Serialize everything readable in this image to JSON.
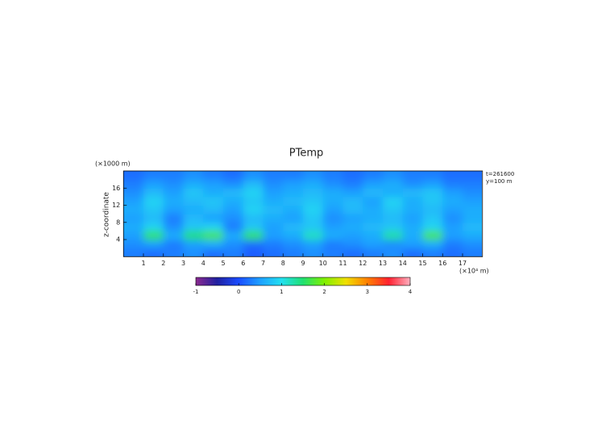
{
  "chart_data": {
    "type": "heatmap",
    "title": "PTemp",
    "ylabel": "z-coordinate",
    "yunit": "(×1000 m)",
    "xunit": "(×10⁴ m)",
    "annotations": [
      "t=261600",
      "y=100 m"
    ],
    "x": [
      0.5,
      1.5,
      2.5,
      3.5,
      4.5,
      5.5,
      6.5,
      7.5,
      8.5,
      9.5,
      10.5,
      11.5,
      12.5,
      13.5,
      14.5,
      15.5,
      16.5,
      17.5
    ],
    "y": [
      1,
      3,
      5,
      7,
      9,
      11,
      13,
      15,
      17,
      19
    ],
    "values": [
      [
        0.3,
        0.2,
        0.3,
        0.4,
        0.2,
        0.3,
        0.1,
        0.2,
        0.3,
        0.4,
        0.3,
        0.2,
        0.3,
        0.4,
        0.2,
        0.3,
        0.2,
        0.3
      ],
      [
        0.4,
        0.5,
        0.3,
        0.5,
        0.6,
        0.4,
        0.2,
        0.3,
        0.4,
        0.5,
        0.3,
        0.4,
        0.5,
        0.4,
        0.5,
        0.6,
        0.3,
        0.4
      ],
      [
        0.5,
        1.6,
        0.6,
        1.5,
        1.7,
        0.6,
        1.6,
        0.5,
        0.6,
        1.2,
        0.6,
        0.5,
        0.6,
        1.3,
        0.6,
        1.7,
        0.5,
        0.6
      ],
      [
        0.6,
        0.9,
        0.4,
        0.8,
        0.9,
        0.3,
        0.8,
        0.5,
        0.7,
        0.8,
        0.5,
        0.6,
        0.7,
        0.8,
        0.6,
        0.9,
        0.5,
        0.7
      ],
      [
        0.5,
        0.7,
        0.3,
        0.7,
        0.5,
        0.4,
        0.7,
        0.6,
        0.5,
        0.8,
        0.4,
        0.5,
        0.6,
        0.7,
        0.5,
        0.8,
        0.4,
        0.6
      ],
      [
        0.6,
        0.8,
        0.5,
        0.6,
        0.7,
        0.5,
        0.9,
        0.7,
        0.6,
        0.9,
        0.5,
        0.7,
        0.6,
        0.8,
        0.6,
        0.7,
        0.5,
        0.6
      ],
      [
        0.5,
        0.9,
        0.6,
        0.7,
        0.8,
        0.6,
        0.8,
        0.6,
        0.7,
        0.8,
        0.6,
        0.7,
        0.5,
        0.9,
        0.6,
        0.8,
        0.6,
        0.5
      ],
      [
        0.4,
        0.7,
        0.5,
        0.8,
        0.6,
        0.7,
        0.9,
        0.5,
        0.6,
        0.7,
        0.6,
        0.5,
        0.7,
        0.6,
        0.7,
        0.8,
        0.5,
        0.4
      ],
      [
        0.3,
        0.5,
        0.4,
        0.6,
        0.5,
        0.4,
        0.7,
        0.4,
        0.5,
        0.6,
        0.4,
        0.3,
        0.5,
        0.6,
        0.4,
        0.5,
        0.3,
        0.3
      ],
      [
        0.2,
        0.3,
        0.3,
        0.4,
        0.3,
        0.2,
        0.4,
        0.3,
        0.3,
        0.4,
        0.3,
        0.2,
        0.3,
        0.4,
        0.3,
        0.3,
        0.2,
        0.2
      ]
    ],
    "xlim": [
      0,
      18
    ],
    "ylim": [
      0,
      20
    ],
    "xticks": [
      1,
      2,
      3,
      4,
      5,
      6,
      7,
      8,
      9,
      10,
      11,
      12,
      13,
      14,
      15,
      16,
      17
    ],
    "yticks": [
      4,
      8,
      12,
      16
    ],
    "clim": [
      -1,
      4
    ],
    "cticks": [
      -1,
      0,
      1,
      2,
      3,
      4
    ],
    "colormap": [
      "#8b2a8f",
      "#2020a0",
      "#1a4cff",
      "#1ea0ff",
      "#22e0f0",
      "#20e070",
      "#80f000",
      "#f0e000",
      "#ff8000",
      "#ff2030",
      "#ffb0c0"
    ]
  }
}
